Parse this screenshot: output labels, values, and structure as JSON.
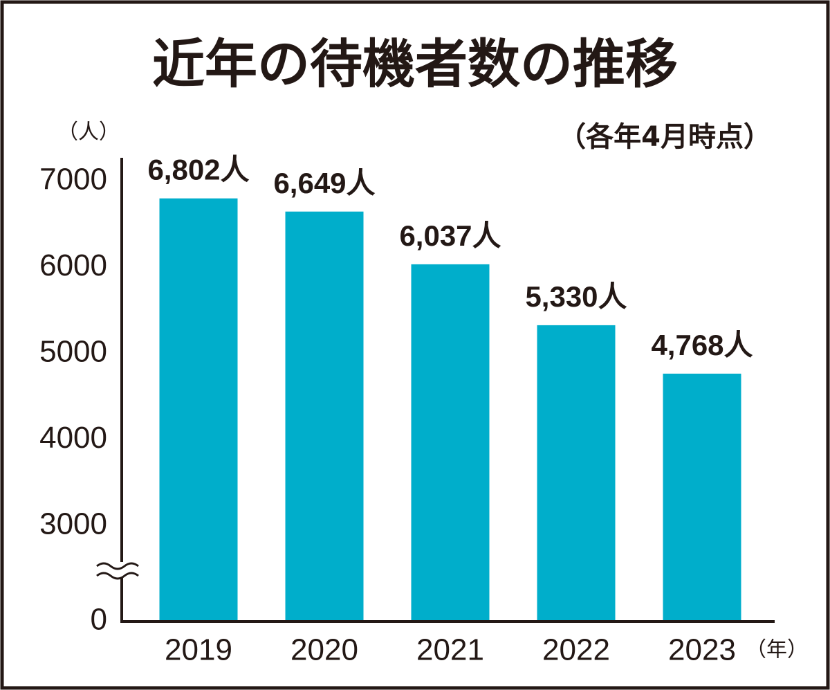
{
  "chart_data": {
    "type": "bar",
    "title": "近年の待機者数の推移",
    "subtitle": "（各年4月時点）",
    "y_axis_label": "（人）",
    "x_axis_label": "（年）",
    "categories": [
      "2019",
      "2020",
      "2021",
      "2022",
      "2023"
    ],
    "values": [
      6802,
      6649,
      6037,
      5330,
      4768
    ],
    "value_labels": [
      "6,802人",
      "6,649人",
      "6,037人",
      "5,330人",
      "4,768人"
    ],
    "color": "#00aecb",
    "ylim": [
      0,
      7000
    ],
    "ybreak": [
      0,
      3000
    ],
    "yticks": [
      0,
      3000,
      4000,
      5000,
      6000,
      7000
    ],
    "grid": false
  }
}
